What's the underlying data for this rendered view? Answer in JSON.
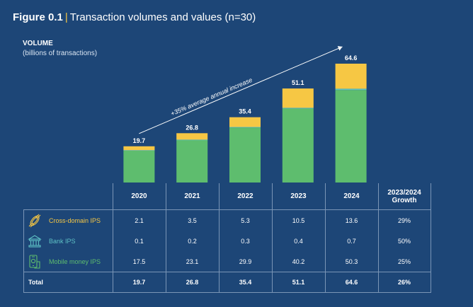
{
  "figure": {
    "number": "Figure 0.1",
    "separator": "|",
    "title": "Transaction volumes and values (n=30)"
  },
  "volume_heading": "VOLUME",
  "volume_unit": "(billions of transactions)",
  "colors": {
    "background": "#1d4677",
    "cross_domain": "#f6c744",
    "bank": "#5ec1c5",
    "mobile_money": "#5ebd6e",
    "grid": "#7a95b6"
  },
  "chart_data": {
    "type": "bar",
    "stacked": true,
    "title": "Transaction volumes and values (n=30)",
    "ylabel": "billions of transactions",
    "categories": [
      "2020",
      "2021",
      "2022",
      "2023",
      "2024"
    ],
    "series": [
      {
        "name": "Mobile money IPS",
        "values": [
          17.5,
          23.1,
          29.9,
          40.2,
          50.3
        ]
      },
      {
        "name": "Bank IPS",
        "values": [
          0.1,
          0.2,
          0.3,
          0.4,
          0.7
        ]
      },
      {
        "name": "Cross-domain IPS",
        "values": [
          2.1,
          3.5,
          5.3,
          10.5,
          13.6
        ]
      }
    ],
    "totals": [
      "19.7",
      "26.8",
      "35.4",
      "51.1",
      "64.6"
    ],
    "ylim": [
      0,
      70
    ],
    "annotation": "+35% average annual increase"
  },
  "table": {
    "headers": [
      "2020",
      "2021",
      "2022",
      "2023",
      "2024"
    ],
    "growth_header_line1": "2023/2024",
    "growth_header_line2": "Growth",
    "rows": [
      {
        "label": "Cross-domain IPS",
        "icon": "hand-coins-icon",
        "color": "#f6c744",
        "values": [
          "2.1",
          "3.5",
          "5.3",
          "10.5",
          "13.6"
        ],
        "growth": "29%"
      },
      {
        "label": "Bank IPS",
        "icon": "bank-icon",
        "color": "#5ec1c5",
        "values": [
          "0.1",
          "0.2",
          "0.3",
          "0.4",
          "0.7"
        ],
        "growth": "50%"
      },
      {
        "label": "Mobile money IPS",
        "icon": "mobile-money-icon",
        "color": "#5ebd6e",
        "values": [
          "17.5",
          "23.1",
          "29.9",
          "40.2",
          "50.3"
        ],
        "growth": "25%"
      }
    ],
    "total": {
      "label": "Total",
      "values": [
        "19.7",
        "26.8",
        "35.4",
        "51.1",
        "64.6"
      ],
      "growth": "26%"
    }
  }
}
